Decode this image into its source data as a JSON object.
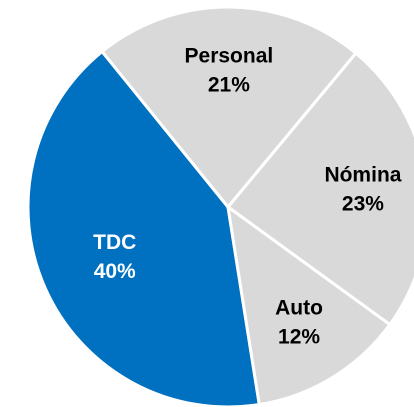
{
  "chart_data": {
    "type": "pie",
    "categories": [
      "TDC",
      "Personal",
      "Nómina",
      "Auto"
    ],
    "values": [
      40,
      21,
      23,
      12
    ],
    "value_labels": [
      "40%",
      "21%",
      "23%",
      "12%"
    ],
    "colors": [
      "#0070c0",
      "#d9d9d9",
      "#d9d9d9",
      "#d9d9d9"
    ],
    "label_colors": [
      "#ffffff",
      "#000000",
      "#000000",
      "#000000"
    ]
  }
}
